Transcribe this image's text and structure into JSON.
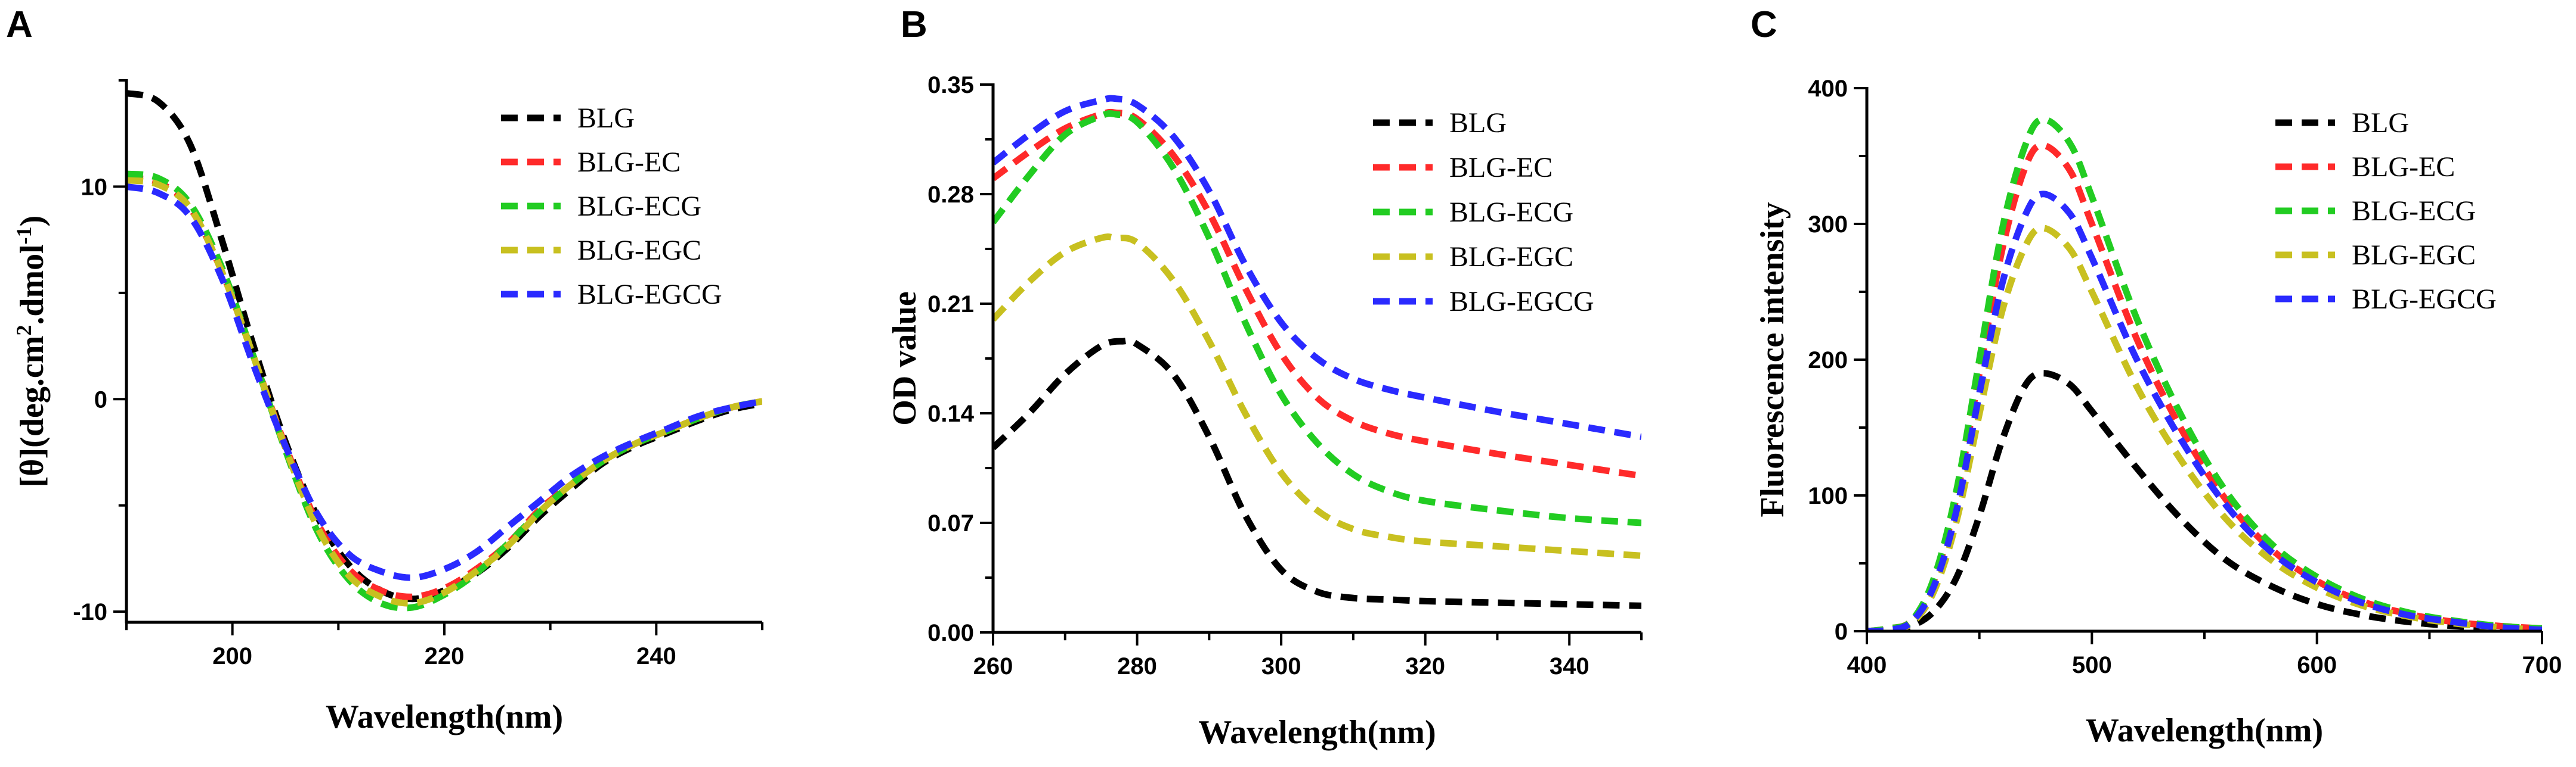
{
  "chart_data": [
    {
      "panel": "A",
      "type": "line",
      "xlabel": "Wavelength(nm)",
      "ylabel": "[θ](deg.cm²·dmol⁻¹)",
      "ylabel_parts": [
        "[θ](deg.cm",
        "2",
        ".dmol",
        "-1",
        ")"
      ],
      "xlim": [
        190,
        250
      ],
      "ylim": [
        -10.5,
        15
      ],
      "xticks": [
        200,
        220,
        240
      ],
      "yticks": [
        -10,
        0,
        10
      ],
      "ytick_labels": [
        "-10",
        "0",
        "10"
      ],
      "legend": "top-right",
      "series": [
        {
          "name": "BLG",
          "color": "#000000",
          "x": [
            190,
            193,
            196,
            199,
            202,
            205,
            208,
            211,
            214,
            217,
            220,
            223,
            226,
            229,
            232,
            235,
            238,
            241,
            244,
            247,
            250
          ],
          "y": [
            14.4,
            14.0,
            12.0,
            7.5,
            2.5,
            -2.0,
            -5.5,
            -7.8,
            -9.0,
            -9.4,
            -9.0,
            -8.2,
            -7.0,
            -5.5,
            -4.2,
            -3.0,
            -2.2,
            -1.6,
            -1.0,
            -0.5,
            -0.2
          ]
        },
        {
          "name": "BLG-EC",
          "color": "#ff2a2a",
          "x": [
            190,
            193,
            196,
            199,
            202,
            205,
            208,
            211,
            214,
            217,
            220,
            223,
            226,
            229,
            232,
            235,
            238,
            241,
            244,
            247,
            250
          ],
          "y": [
            10.4,
            10.2,
            9.0,
            6.0,
            2.0,
            -2.2,
            -5.8,
            -8.0,
            -9.0,
            -9.3,
            -8.9,
            -8.0,
            -6.8,
            -5.2,
            -4.0,
            -2.9,
            -2.1,
            -1.5,
            -0.9,
            -0.4,
            -0.1
          ]
        },
        {
          "name": "BLG-ECG",
          "color": "#22cc22",
          "x": [
            190,
            193,
            196,
            199,
            202,
            205,
            208,
            211,
            214,
            217,
            220,
            223,
            226,
            229,
            232,
            235,
            238,
            241,
            244,
            247,
            250
          ],
          "y": [
            10.6,
            10.4,
            9.2,
            6.2,
            2.0,
            -2.4,
            -6.2,
            -8.5,
            -9.6,
            -9.8,
            -9.2,
            -8.2,
            -6.8,
            -5.3,
            -4.0,
            -2.9,
            -2.1,
            -1.5,
            -0.9,
            -0.4,
            -0.1
          ]
        },
        {
          "name": "BLG-EGC",
          "color": "#c8c020",
          "x": [
            190,
            193,
            196,
            199,
            202,
            205,
            208,
            211,
            214,
            217,
            220,
            223,
            226,
            229,
            232,
            235,
            238,
            241,
            244,
            247,
            250
          ],
          "y": [
            10.3,
            10.1,
            9.0,
            6.0,
            2.0,
            -2.3,
            -6.0,
            -8.3,
            -9.3,
            -9.6,
            -9.1,
            -8.1,
            -6.9,
            -5.3,
            -4.0,
            -2.9,
            -2.1,
            -1.5,
            -0.9,
            -0.4,
            -0.1
          ]
        },
        {
          "name": "BLG-EGCG",
          "color": "#2a2aff",
          "x": [
            190,
            193,
            196,
            199,
            202,
            205,
            208,
            211,
            214,
            217,
            220,
            223,
            226,
            229,
            232,
            235,
            238,
            241,
            244,
            247,
            250
          ],
          "y": [
            10.0,
            9.7,
            8.6,
            5.7,
            1.6,
            -2.2,
            -5.4,
            -7.3,
            -8.1,
            -8.4,
            -8.0,
            -7.2,
            -6.0,
            -4.8,
            -3.6,
            -2.7,
            -2.0,
            -1.4,
            -0.8,
            -0.4,
            -0.1
          ]
        }
      ]
    },
    {
      "panel": "B",
      "type": "line",
      "xlabel": "Wavelength(nm)",
      "ylabel": "OD value",
      "ylabel_parts": [
        "OD value"
      ],
      "xlim": [
        260,
        350
      ],
      "ylim": [
        0,
        0.35
      ],
      "xticks": [
        260,
        280,
        300,
        320,
        340
      ],
      "yticks": [
        0,
        0.07,
        0.14,
        0.21,
        0.28,
        0.35
      ],
      "ytick_labels": [
        "0.00",
        "0.07",
        "0.14",
        "0.21",
        "0.28",
        "0.35"
      ],
      "legend": "top-right",
      "series": [
        {
          "name": "BLG",
          "color": "#000000",
          "x": [
            260,
            265,
            270,
            275,
            278,
            280,
            285,
            290,
            295,
            300,
            305,
            310,
            315,
            320,
            330,
            340,
            350
          ],
          "y": [
            0.118,
            0.14,
            0.165,
            0.183,
            0.186,
            0.184,
            0.165,
            0.125,
            0.075,
            0.04,
            0.026,
            0.022,
            0.021,
            0.02,
            0.019,
            0.018,
            0.017
          ]
        },
        {
          "name": "BLG-EC",
          "color": "#ff2a2a",
          "x": [
            260,
            265,
            270,
            275,
            277,
            280,
            285,
            290,
            295,
            300,
            305,
            310,
            315,
            320,
            330,
            340,
            350
          ],
          "y": [
            0.29,
            0.307,
            0.322,
            0.331,
            0.332,
            0.328,
            0.305,
            0.268,
            0.22,
            0.178,
            0.15,
            0.135,
            0.127,
            0.122,
            0.114,
            0.107,
            0.1
          ]
        },
        {
          "name": "BLG-ECG",
          "color": "#22cc22",
          "x": [
            260,
            265,
            270,
            275,
            277,
            280,
            285,
            290,
            295,
            300,
            305,
            310,
            315,
            320,
            330,
            340,
            350
          ],
          "y": [
            0.262,
            0.292,
            0.318,
            0.33,
            0.331,
            0.326,
            0.297,
            0.252,
            0.198,
            0.152,
            0.121,
            0.101,
            0.09,
            0.084,
            0.078,
            0.073,
            0.07
          ]
        },
        {
          "name": "BLG-EGC",
          "color": "#c8c020",
          "x": [
            260,
            265,
            270,
            275,
            277,
            280,
            285,
            290,
            295,
            300,
            305,
            310,
            315,
            320,
            330,
            340,
            350
          ],
          "y": [
            0.2,
            0.224,
            0.243,
            0.252,
            0.252,
            0.249,
            0.225,
            0.186,
            0.14,
            0.102,
            0.078,
            0.066,
            0.061,
            0.058,
            0.055,
            0.052,
            0.049
          ]
        },
        {
          "name": "BLG-EGCG",
          "color": "#2a2aff",
          "x": [
            260,
            265,
            270,
            275,
            277,
            280,
            285,
            290,
            295,
            300,
            305,
            310,
            315,
            320,
            330,
            340,
            350
          ],
          "y": [
            0.3,
            0.318,
            0.333,
            0.34,
            0.341,
            0.337,
            0.317,
            0.282,
            0.235,
            0.198,
            0.175,
            0.162,
            0.155,
            0.15,
            0.141,
            0.133,
            0.125
          ]
        }
      ]
    },
    {
      "panel": "C",
      "type": "line",
      "xlabel": "Wavelength(nm)",
      "ylabel": "Fluorescence intensity",
      "ylabel_parts": [
        "Fluorescence intensity"
      ],
      "xlim": [
        400,
        700
      ],
      "ylim": [
        0,
        400
      ],
      "xticks": [
        400,
        500,
        600,
        700
      ],
      "yticks": [
        0,
        100,
        200,
        300,
        400
      ],
      "ytick_labels": [
        "0",
        "100",
        "200",
        "300",
        "400"
      ],
      "legend": "top-right",
      "series": [
        {
          "name": "BLG",
          "color": "#000000",
          "x": [
            400,
            410,
            420,
            430,
            440,
            450,
            460,
            470,
            478,
            490,
            500,
            520,
            540,
            560,
            580,
            600,
            620,
            640,
            660,
            680,
            700
          ],
          "y": [
            0,
            1,
            4,
            15,
            40,
            85,
            140,
            180,
            190,
            182,
            162,
            120,
            82,
            52,
            33,
            20,
            12,
            7,
            4,
            2,
            1
          ]
        },
        {
          "name": "BLG-EC",
          "color": "#ff2a2a",
          "x": [
            400,
            410,
            420,
            430,
            440,
            450,
            460,
            470,
            478,
            490,
            500,
            520,
            540,
            560,
            580,
            600,
            620,
            640,
            660,
            680,
            700
          ],
          "y": [
            0,
            2,
            8,
            38,
            100,
            190,
            280,
            340,
            358,
            340,
            300,
            215,
            148,
            96,
            60,
            37,
            22,
            13,
            7,
            4,
            2
          ]
        },
        {
          "name": "BLG-ECG",
          "color": "#22cc22",
          "x": [
            400,
            410,
            420,
            430,
            440,
            450,
            460,
            470,
            478,
            490,
            500,
            520,
            540,
            560,
            580,
            600,
            620,
            640,
            660,
            680,
            700
          ],
          "y": [
            0,
            2,
            8,
            40,
            105,
            200,
            295,
            356,
            377,
            360,
            320,
            230,
            158,
            102,
            64,
            40,
            24,
            14,
            8,
            4,
            2
          ]
        },
        {
          "name": "BLG-EGC",
          "color": "#c8c020",
          "x": [
            400,
            410,
            420,
            430,
            440,
            450,
            460,
            470,
            478,
            490,
            500,
            520,
            540,
            560,
            580,
            600,
            620,
            640,
            660,
            680,
            700
          ],
          "y": [
            0,
            1,
            6,
            30,
            82,
            160,
            235,
            282,
            297,
            282,
            250,
            180,
            125,
            82,
            52,
            32,
            19,
            11,
            6,
            3,
            1
          ]
        },
        {
          "name": "BLG-EGCG",
          "color": "#2a2aff",
          "x": [
            400,
            410,
            420,
            430,
            440,
            450,
            460,
            470,
            478,
            490,
            500,
            520,
            540,
            560,
            580,
            600,
            620,
            640,
            660,
            680,
            700
          ],
          "y": [
            0,
            1,
            7,
            34,
            90,
            175,
            255,
            305,
            322,
            308,
            275,
            200,
            140,
            92,
            58,
            36,
            21,
            12,
            7,
            3,
            1
          ]
        }
      ]
    }
  ]
}
